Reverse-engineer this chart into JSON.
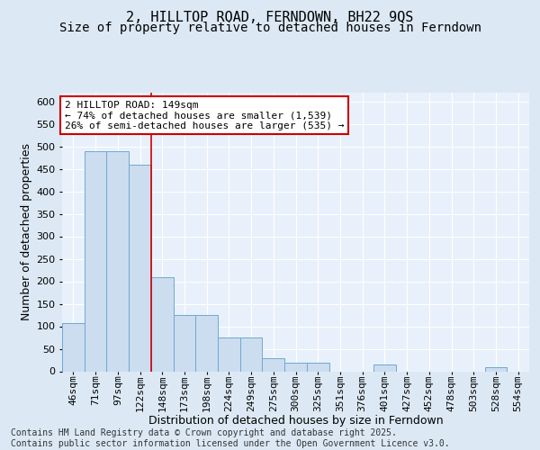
{
  "title1": "2, HILLTOP ROAD, FERNDOWN, BH22 9QS",
  "title2": "Size of property relative to detached houses in Ferndown",
  "xlabel": "Distribution of detached houses by size in Ferndown",
  "ylabel": "Number of detached properties",
  "categories": [
    "46sqm",
    "71sqm",
    "97sqm",
    "122sqm",
    "148sqm",
    "173sqm",
    "198sqm",
    "224sqm",
    "249sqm",
    "275sqm",
    "300sqm",
    "325sqm",
    "351sqm",
    "376sqm",
    "401sqm",
    "427sqm",
    "452sqm",
    "478sqm",
    "503sqm",
    "528sqm",
    "554sqm"
  ],
  "values": [
    107,
    490,
    490,
    460,
    210,
    125,
    125,
    75,
    75,
    30,
    20,
    20,
    0,
    0,
    15,
    0,
    0,
    0,
    0,
    10,
    0
  ],
  "bar_color": "#ccddf0",
  "bar_edge_color": "#6fa8d0",
  "vline_color": "#cc0000",
  "vline_index": 3.5,
  "annotation_text": "2 HILLTOP ROAD: 149sqm\n← 74% of detached houses are smaller (1,539)\n26% of semi-detached houses are larger (535) →",
  "annotation_box_color": "#cc0000",
  "footer_text": "Contains HM Land Registry data © Crown copyright and database right 2025.\nContains public sector information licensed under the Open Government Licence v3.0.",
  "ylim": [
    0,
    620
  ],
  "yticks": [
    0,
    50,
    100,
    150,
    200,
    250,
    300,
    350,
    400,
    450,
    500,
    550,
    600
  ],
  "bg_color": "#dce9f5",
  "plot_bg_color": "#e8f1fb",
  "grid_color": "#ffffff",
  "title1_fontsize": 11,
  "title2_fontsize": 10,
  "xlabel_fontsize": 9,
  "ylabel_fontsize": 9,
  "tick_fontsize": 8,
  "footer_fontsize": 7,
  "annot_fontsize": 8
}
